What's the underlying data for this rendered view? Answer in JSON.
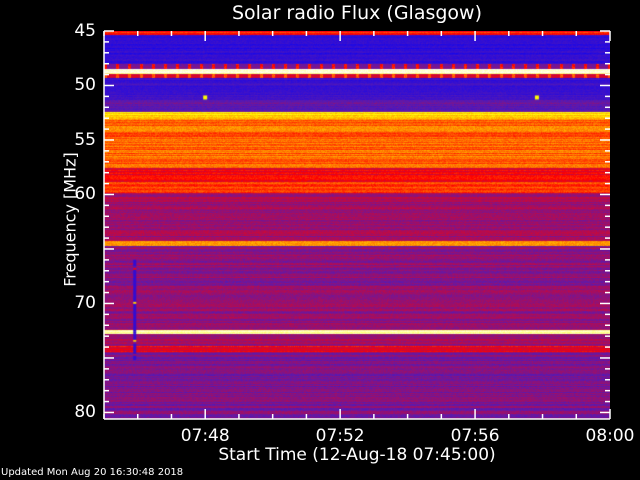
{
  "chart_data": {
    "type": "heatmap",
    "title": "Solar radio Flux (Glasgow)",
    "xlabel": "Start Time (12-Aug-18 07:45:00)",
    "ylabel": "Frequency [MHz]",
    "x_range": [
      "07:45",
      "08:00"
    ],
    "y_range": [
      45,
      80.6
    ],
    "y_inverted": true,
    "x_ticks": [
      "07:48",
      "07:52",
      "07:56",
      "08:00"
    ],
    "y_ticks": [
      45,
      50,
      55,
      60,
      70,
      80
    ],
    "colormap": [
      "#000000",
      "#0000ff",
      "#5a1ab0",
      "#ff0000",
      "#ffff00",
      "#ffffff"
    ],
    "bands": [
      {
        "from": 45.0,
        "to": 45.3,
        "level": 0.62
      },
      {
        "from": 45.3,
        "to": 48.0,
        "level": 0.3
      },
      {
        "from": 48.0,
        "to": 48.4,
        "level": 0.45
      },
      {
        "from": 48.4,
        "to": 48.9,
        "level": 0.95
      },
      {
        "from": 48.9,
        "to": 49.3,
        "level": 0.55
      },
      {
        "from": 49.3,
        "to": 51.3,
        "level": 0.33
      },
      {
        "from": 51.3,
        "to": 52.4,
        "level": 0.4
      },
      {
        "from": 52.4,
        "to": 53.0,
        "level": 0.78
      },
      {
        "from": 53.0,
        "to": 57.5,
        "level": 0.68
      },
      {
        "from": 57.5,
        "to": 58.8,
        "level": 0.58
      },
      {
        "from": 58.8,
        "to": 59.8,
        "level": 0.64
      },
      {
        "from": 59.8,
        "to": 64.2,
        "level": 0.48
      },
      {
        "from": 64.2,
        "to": 64.7,
        "level": 0.75
      },
      {
        "from": 64.7,
        "to": 72.4,
        "level": 0.46
      },
      {
        "from": 72.4,
        "to": 72.8,
        "level": 0.92
      },
      {
        "from": 72.8,
        "to": 73.9,
        "level": 0.48
      },
      {
        "from": 73.9,
        "to": 74.4,
        "level": 0.58
      },
      {
        "from": 74.4,
        "to": 80.6,
        "level": 0.44
      }
    ],
    "bursts": [
      {
        "time": "07:45:52",
        "from": 66.0,
        "to": 75.0,
        "level": 0.3
      }
    ],
    "spots": [
      {
        "time": "07:48:00",
        "freq": 51.1,
        "level": 0.8
      },
      {
        "time": "07:57:50",
        "freq": 51.1,
        "level": 0.8
      }
    ]
  },
  "footer": {
    "updated": "Updated Mon Aug 20 16:30:48 2018"
  }
}
